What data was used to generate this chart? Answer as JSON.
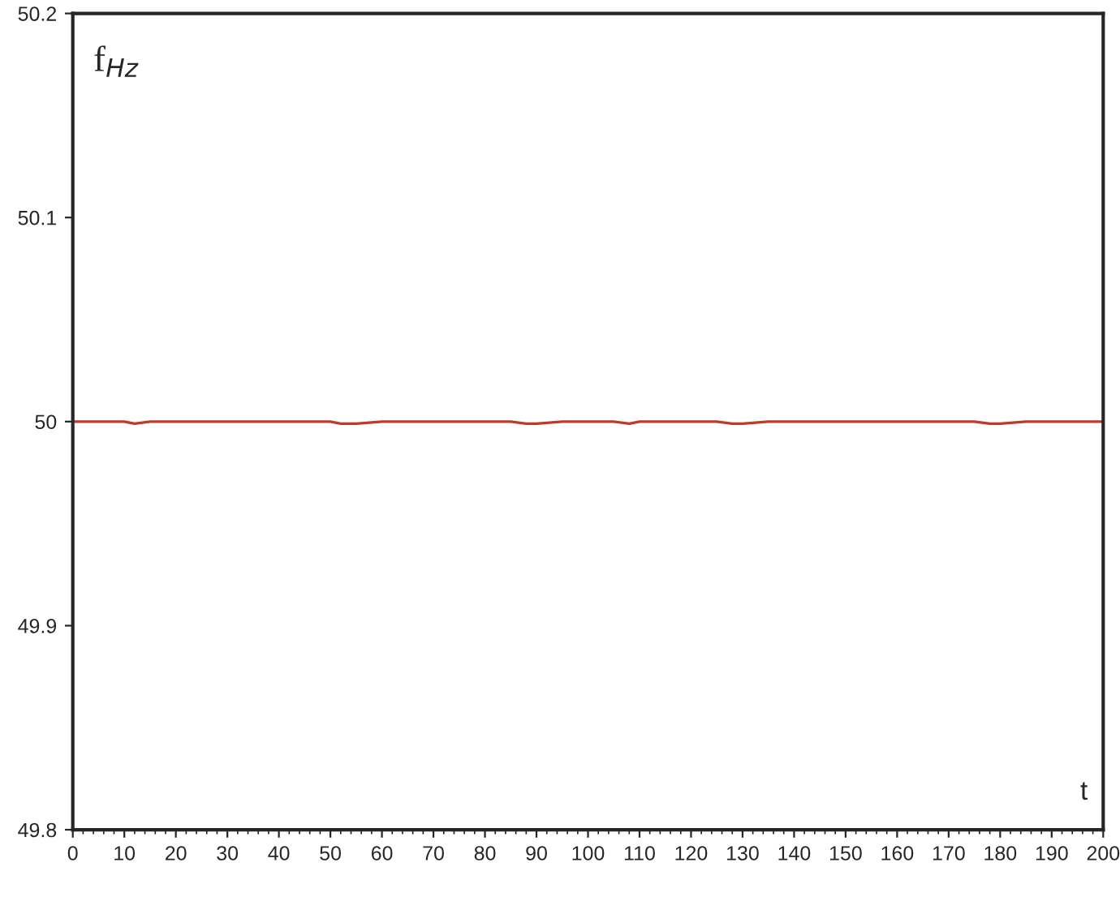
{
  "chart_data": {
    "type": "line",
    "xlabel": "t",
    "ylabel": "f$_{Hz}$",
    "x": [
      0,
      5,
      10,
      12,
      15,
      20,
      25,
      30,
      35,
      40,
      45,
      50,
      52,
      55,
      60,
      65,
      70,
      75,
      80,
      85,
      88,
      90,
      95,
      100,
      105,
      108,
      110,
      115,
      120,
      125,
      128,
      130,
      135,
      140,
      145,
      150,
      155,
      160,
      165,
      170,
      175,
      178,
      180,
      185,
      190,
      195,
      200
    ],
    "series": [
      {
        "color": "#c0392b",
        "values": [
          50,
          50,
          50,
          49.999,
          50,
          50,
          50,
          50,
          50,
          50,
          50,
          50,
          49.999,
          49.999,
          50,
          50,
          50,
          50,
          50,
          50,
          49.999,
          49.999,
          50,
          50,
          50,
          49.999,
          50,
          50,
          50,
          50,
          49.999,
          49.999,
          50,
          50,
          50,
          50,
          50,
          50,
          50,
          50,
          50,
          49.999,
          49.999,
          50,
          50,
          50,
          50
        ]
      }
    ],
    "xlim": [
      0,
      200
    ],
    "xticks": [
      0,
      10,
      20,
      30,
      40,
      50,
      60,
      70,
      80,
      90,
      100,
      110,
      120,
      130,
      140,
      150,
      160,
      170,
      180,
      190,
      200
    ],
    "ylim": [
      49.8,
      50.2
    ],
    "yticks": [
      49.8,
      49.9,
      50,
      50.1,
      50.2
    ],
    "grid": false,
    "legend": false,
    "marker": "none",
    "line_style": "solid"
  }
}
